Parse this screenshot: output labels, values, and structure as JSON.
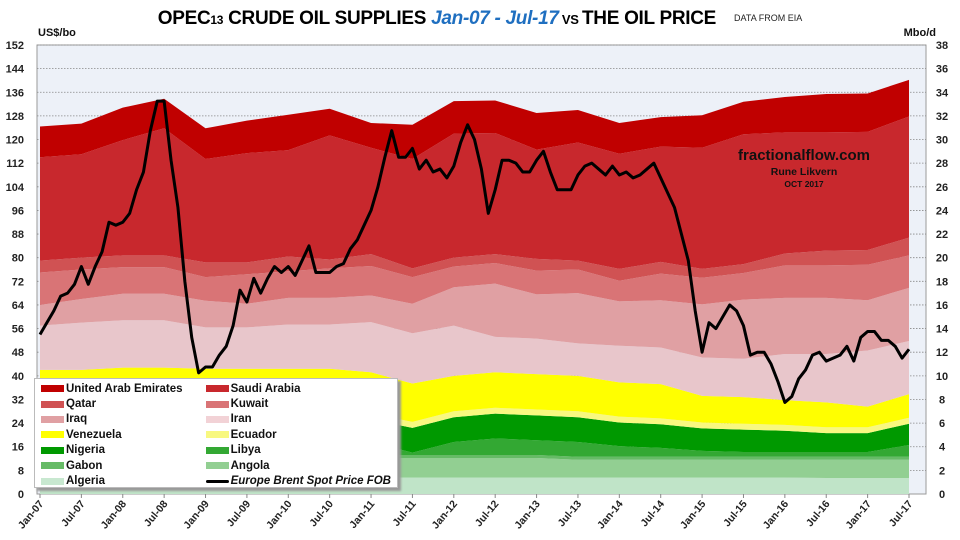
{
  "header": {
    "title_part1": "OPEC",
    "title_sub": "13",
    "title_part2": " CRUDE OIL SUPPLIES ",
    "title_period": "Jan-07 - Jul-17",
    "title_vs": " VS ",
    "title_part3": "THE OIL PRICE",
    "source": "DATA FROM EIA",
    "left_unit": "US$/bo",
    "right_unit": "Mbo/d"
  },
  "annotation": {
    "site": "fractionalflow.com",
    "author": "Rune Likvern",
    "date": "OCT 2017"
  },
  "chart_data": {
    "type": "area",
    "title": "OPEC13 CRUDE OIL SUPPLIES Jan-07 - Jul-17 VS THE OIL PRICE",
    "ylabel_left": "US$/bo",
    "ylabel_right": "Mbo/d",
    "ylim_left": [
      0,
      152
    ],
    "ylim_right": [
      0,
      38
    ],
    "yticks_left": [
      0,
      8,
      16,
      24,
      32,
      40,
      48,
      56,
      64,
      72,
      80,
      88,
      96,
      104,
      112,
      120,
      128,
      136,
      144,
      152
    ],
    "yticks_right": [
      0,
      2,
      4,
      6,
      8,
      10,
      12,
      14,
      16,
      18,
      20,
      22,
      24,
      26,
      28,
      30,
      32,
      34,
      36,
      38
    ],
    "grid": true,
    "legend_position": "bottom-left",
    "x_labels": [
      "Jan-07",
      "Jul-07",
      "Jan-08",
      "Jul-08",
      "Jan-09",
      "Jul-09",
      "Jan-10",
      "Jul-10",
      "Jan-11",
      "Jul-11",
      "Jan-12",
      "Jul-12",
      "Jan-13",
      "Jul-13",
      "Jan-14",
      "Jul-14",
      "Jan-15",
      "Jul-15",
      "Jan-16",
      "Jul-16",
      "Jan-17",
      "Jul-17"
    ],
    "series": [
      {
        "name": "United Arab Emirates",
        "color": "#c00000",
        "values": [
          2.6,
          2.6,
          2.75,
          2.5,
          2.6,
          2.75,
          3,
          2.25,
          2.1,
          2.9,
          2.75,
          2.75,
          3.1,
          2.75,
          2.6,
          2.5,
          2.75,
          2.75,
          3,
          3.25,
          3.25,
          3.1
        ]
      },
      {
        "name": "Saudi Arabia",
        "color": "#c8282d",
        "values": [
          8.75,
          8.75,
          9.75,
          10.75,
          8.75,
          9.25,
          9,
          10.5,
          9,
          9.25,
          10.5,
          10.25,
          9.25,
          10,
          9.75,
          9.75,
          10.25,
          11,
          10.25,
          10,
          10,
          10.25
        ]
      },
      {
        "name": "Qatar",
        "color": "#d05253",
        "values": [
          1,
          1,
          1,
          1,
          1.25,
          1,
          1.25,
          0.75,
          1,
          0.75,
          0.75,
          0.75,
          1,
          0.75,
          1,
          1,
          0.75,
          0.75,
          1,
          1.25,
          1.25,
          1.5
        ]
      },
      {
        "name": "Kuwait",
        "color": "#d97476",
        "values": [
          2.75,
          2.5,
          2.25,
          2.25,
          2,
          2.5,
          2.25,
          2.5,
          2.5,
          2.25,
          1.75,
          1.75,
          2,
          2,
          1.75,
          2.25,
          2.25,
          2.25,
          2.75,
          2.75,
          3,
          2.75
        ]
      },
      {
        "name": "Iraq",
        "color": "#e0a0a3",
        "values": [
          1.75,
          2,
          2.25,
          2.25,
          2.25,
          2,
          2.25,
          2.25,
          2.25,
          2.5,
          3.25,
          4.5,
          3.75,
          4.25,
          3.75,
          4,
          4.5,
          5,
          4.75,
          4.75,
          4.25,
          4.5
        ]
      },
      {
        "name": "Iran",
        "color": "#e8c6cb",
        "values": [
          3.75,
          4,
          4,
          4,
          3.5,
          3.5,
          3.75,
          3.75,
          4.25,
          4.25,
          4.25,
          3,
          3,
          2.75,
          3.1,
          3.1,
          3.25,
          3.25,
          3.9,
          4.1,
          4.75,
          4.5
        ]
      },
      {
        "name": "Venezuela",
        "color": "#ffff00",
        "values": [
          3.75,
          3.75,
          3.75,
          3.75,
          3.9,
          3.9,
          3.9,
          3.9,
          3.5,
          3.25,
          3,
          3,
          3,
          3,
          2.9,
          2.9,
          2.25,
          2.25,
          2.1,
          2.1,
          1.75,
          2
        ]
      },
      {
        "name": "Ecuador",
        "color": "#f8f880",
        "values": [
          0.5,
          0.5,
          0.5,
          0.5,
          0.5,
          0.5,
          0.5,
          0.5,
          0.5,
          0.5,
          0.5,
          0.5,
          0.5,
          0.5,
          0.5,
          0.5,
          0.5,
          0.5,
          0.5,
          0.5,
          0.5,
          0.5
        ]
      },
      {
        "name": "Nigeria",
        "color": "#009900",
        "values": [
          1.8,
          1.8,
          2,
          2,
          1.8,
          1.8,
          1.8,
          1.8,
          1.9,
          2.1,
          2.1,
          2.1,
          2.1,
          2.1,
          2,
          2,
          1.9,
          1.9,
          1.8,
          1.6,
          1.6,
          1.8
        ]
      },
      {
        "name": "Libya",
        "color": "#33a833",
        "values": [
          1.1,
          1.1,
          1.1,
          1.1,
          1.1,
          1.1,
          1.1,
          1.1,
          1.1,
          0.2,
          1.1,
          1.4,
          1.25,
          1.25,
          0.9,
          0.75,
          0.5,
          0.4,
          0.4,
          0.4,
          0.4,
          1
        ]
      },
      {
        "name": "Gabon",
        "color": "#66bb66",
        "values": [
          0.25,
          0.25,
          0.25,
          0.25,
          0.25,
          0.25,
          0.25,
          0.25,
          0.25,
          0.25,
          0.25,
          0.25,
          0.25,
          0.25,
          0.25,
          0.25,
          0.25,
          0.25,
          0.25,
          0.25,
          0.25,
          0.25
        ]
      },
      {
        "name": "Angola",
        "color": "#92cf92",
        "values": [
          1.6,
          1.6,
          1.6,
          1.6,
          1.65,
          1.65,
          1.65,
          1.65,
          1.65,
          1.65,
          1.65,
          1.65,
          1.65,
          1.5,
          1.5,
          1.5,
          1.5,
          1.5,
          1.5,
          1.55,
          1.55,
          1.55
        ]
      },
      {
        "name": "Algeria",
        "color": "#c0e4c8",
        "values": [
          1.5,
          1.5,
          1.5,
          1.5,
          1.4,
          1.4,
          1.4,
          1.4,
          1.4,
          1.4,
          1.4,
          1.4,
          1.4,
          1.4,
          1.4,
          1.4,
          1.4,
          1.4,
          1.4,
          1.35,
          1.35,
          1.35
        ]
      }
    ],
    "price": {
      "name": "Europe Brent Spot Price FOB",
      "color": "#000000",
      "start": "Jan-07",
      "frequency": "monthly",
      "values": [
        54,
        58,
        62,
        67,
        68,
        71,
        77,
        71,
        77,
        82,
        92,
        91,
        92,
        95,
        103,
        109,
        123,
        133,
        133,
        113,
        97,
        72,
        53,
        41,
        43,
        43,
        47,
        50,
        57,
        69,
        65,
        73,
        68,
        73,
        77,
        75,
        77,
        74,
        79,
        84,
        75,
        75,
        75,
        77,
        78,
        83,
        86,
        91,
        96,
        104,
        114,
        123,
        114,
        114,
        117,
        110,
        113,
        109,
        110,
        107,
        111,
        119,
        125,
        120,
        110,
        95,
        103,
        113,
        113,
        112,
        109,
        109,
        113,
        116,
        109,
        103,
        103,
        103,
        108,
        111,
        112,
        110,
        108,
        111,
        108,
        109,
        107,
        108,
        110,
        112,
        107,
        102,
        97,
        88,
        79,
        62,
        48,
        58,
        56,
        60,
        64,
        62,
        57,
        47,
        48,
        48,
        44,
        38,
        31,
        33,
        39,
        42,
        47,
        48,
        45,
        46,
        47,
        50,
        45,
        53,
        55,
        55,
        52,
        52,
        50,
        46,
        49
      ]
    }
  }
}
